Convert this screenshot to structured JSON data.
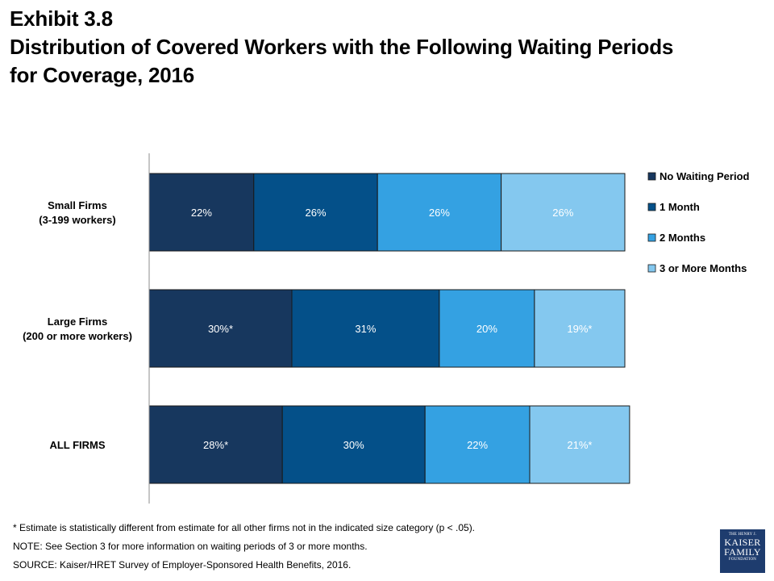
{
  "title": {
    "line1": "Exhibit 3.8",
    "line2": "Distribution of Covered Workers with the Following Waiting Periods",
    "line3": "for Coverage, 2016"
  },
  "chart_data": {
    "type": "bar",
    "orientation": "horizontal",
    "stacked": true,
    "percent": true,
    "xlim": [
      0,
      100
    ],
    "categories": [
      [
        "Small Firms",
        "(3-199 workers)"
      ],
      [
        "Large Firms",
        "(200 or more workers)"
      ],
      [
        "ALL FIRMS"
      ]
    ],
    "series": [
      {
        "name": "No Waiting Period",
        "color": "#17375e",
        "values": [
          22,
          30,
          28
        ],
        "labels": [
          "22%",
          "30%*",
          "28%*"
        ]
      },
      {
        "name": "1 Month",
        "color": "#045089",
        "values": [
          26,
          31,
          30
        ],
        "labels": [
          "26%",
          "31%",
          "30%"
        ]
      },
      {
        "name": "2 Months",
        "color": "#34a1e2",
        "values": [
          26,
          20,
          22
        ],
        "labels": [
          "26%",
          "20%",
          "22%"
        ]
      },
      {
        "name": "3 or More Months",
        "color": "#84c8ef",
        "values": [
          26,
          19,
          21
        ],
        "labels": [
          "26%",
          "19%*",
          "21%*"
        ]
      }
    ],
    "legend_position": "right",
    "grid": false
  },
  "footnotes": {
    "note1": "* Estimate is statistically different from estimate for all other firms not in the indicated size category (p < .05).",
    "note2": "NOTE: See Section 3 for more information on waiting periods of 3 or more months.",
    "source": "SOURCE: Kaiser/HRET Survey of Employer-Sponsored Health Benefits, 2016."
  },
  "logo": {
    "line1": "THE HENRY J.",
    "line2": "KAISER",
    "line3": "FAMILY",
    "line4": "FOUNDATION"
  }
}
